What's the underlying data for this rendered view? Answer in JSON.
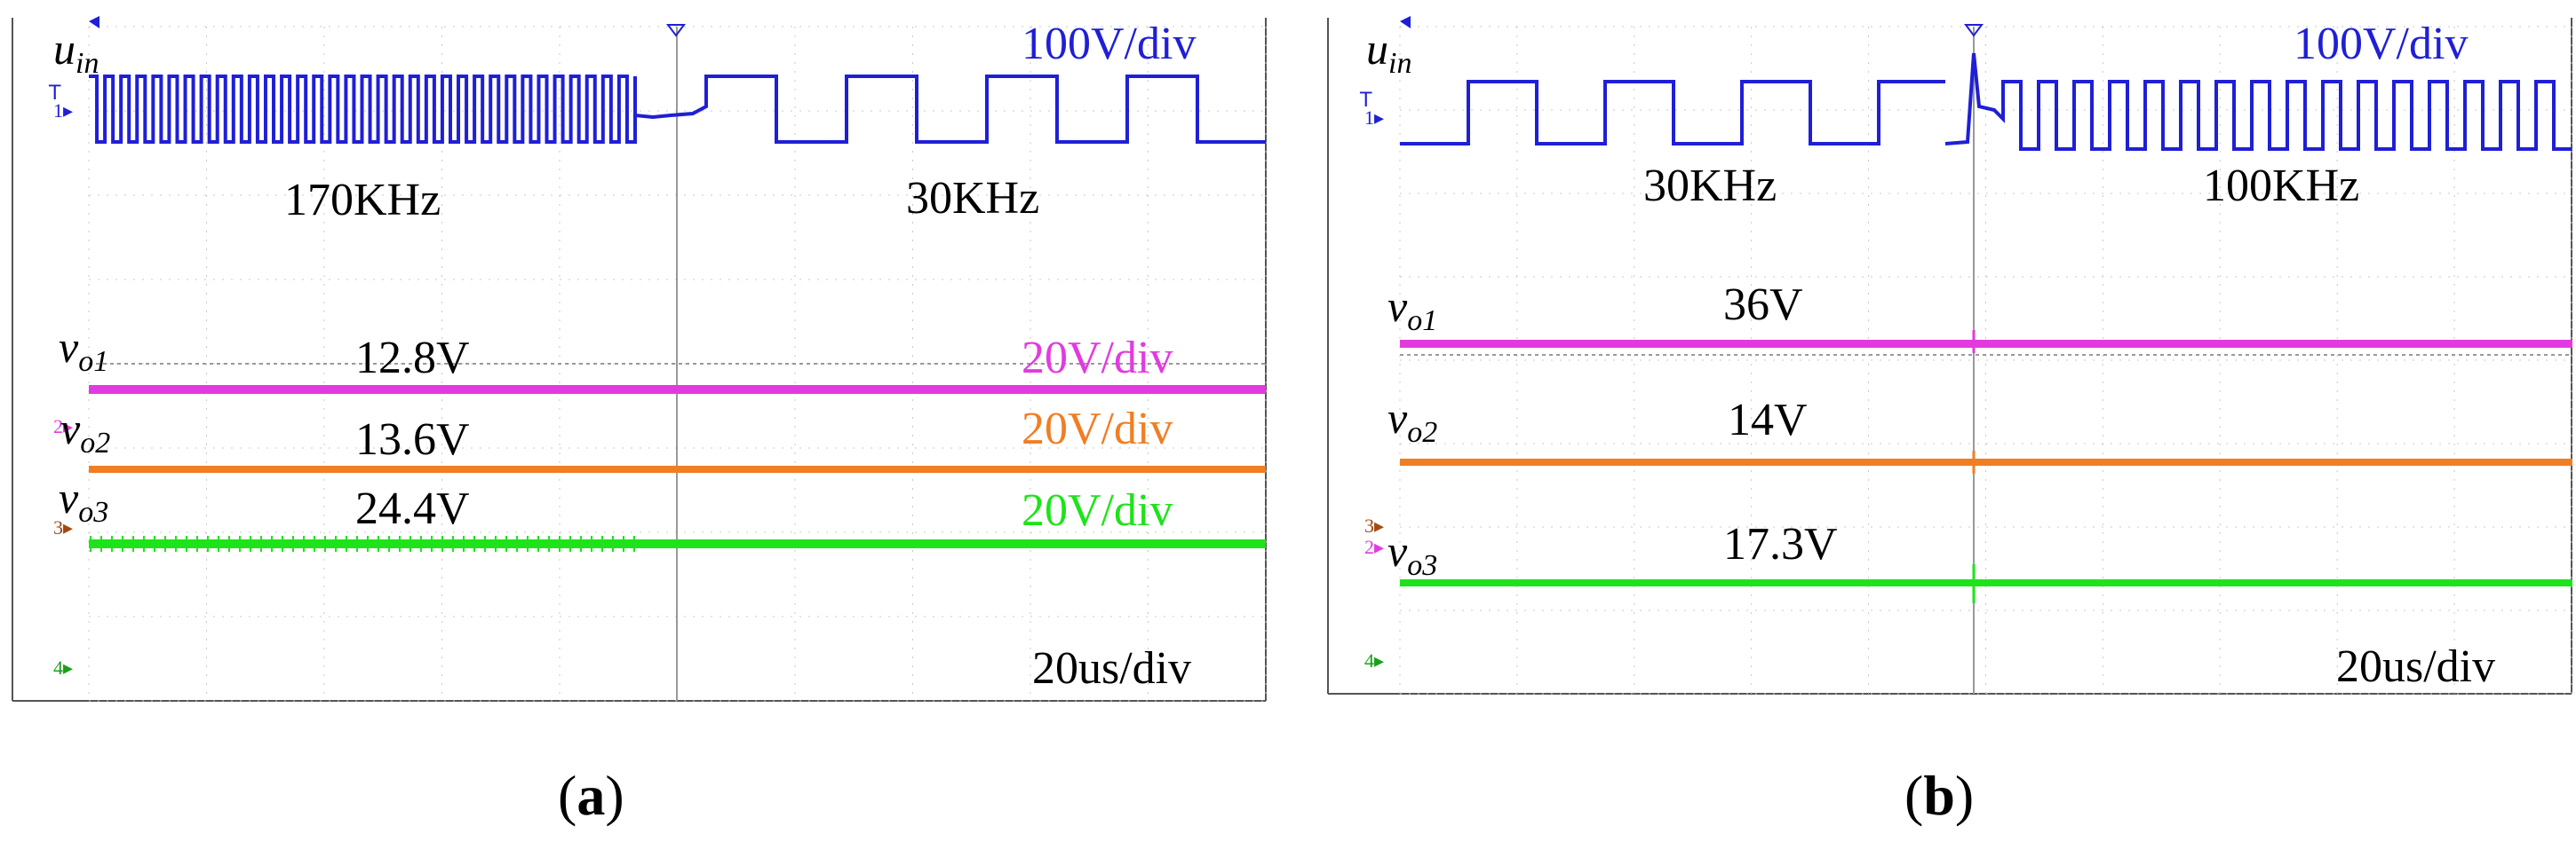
{
  "chart_data": [
    {
      "type": "line",
      "panel_label": "a",
      "caption": "(a)",
      "time_scale": "20us/div",
      "frequency_labels": [
        "170KHz",
        "30KHz"
      ],
      "colors": {
        "uin": "#1f1fd6",
        "vo1": "#e13be0",
        "vo2": "#f07e23",
        "vo3": "#1ee31a",
        "grid": "#c8c8c8",
        "frame": "#444444"
      },
      "series": [
        {
          "name": "u_in",
          "scale": "100V/div",
          "before": "170KHz",
          "after": "30KHz"
        },
        {
          "name": "v_o1",
          "value_label": "12.8V",
          "scale": "20V/div"
        },
        {
          "name": "v_o2",
          "value_label": "13.6V",
          "scale": "20V/div"
        },
        {
          "name": "v_o3",
          "value_label": "24.4V",
          "scale": "20V/div"
        }
      ]
    },
    {
      "type": "line",
      "panel_label": "b",
      "caption": "(b)",
      "time_scale": "20us/div",
      "frequency_labels": [
        "30KHz",
        "100KHz"
      ],
      "colors": {
        "uin": "#1f1fd6",
        "vo1": "#e13be0",
        "vo2": "#f07e23",
        "vo3": "#1ee31a",
        "grid": "#c8c8c8",
        "frame": "#444444"
      },
      "series": [
        {
          "name": "u_in",
          "scale": "100V/div",
          "before": "30KHz",
          "after": "100KHz"
        },
        {
          "name": "v_o1",
          "value_label": "36V"
        },
        {
          "name": "v_o2",
          "value_label": "14V"
        },
        {
          "name": "v_o3",
          "value_label": "17.3V"
        }
      ]
    }
  ]
}
